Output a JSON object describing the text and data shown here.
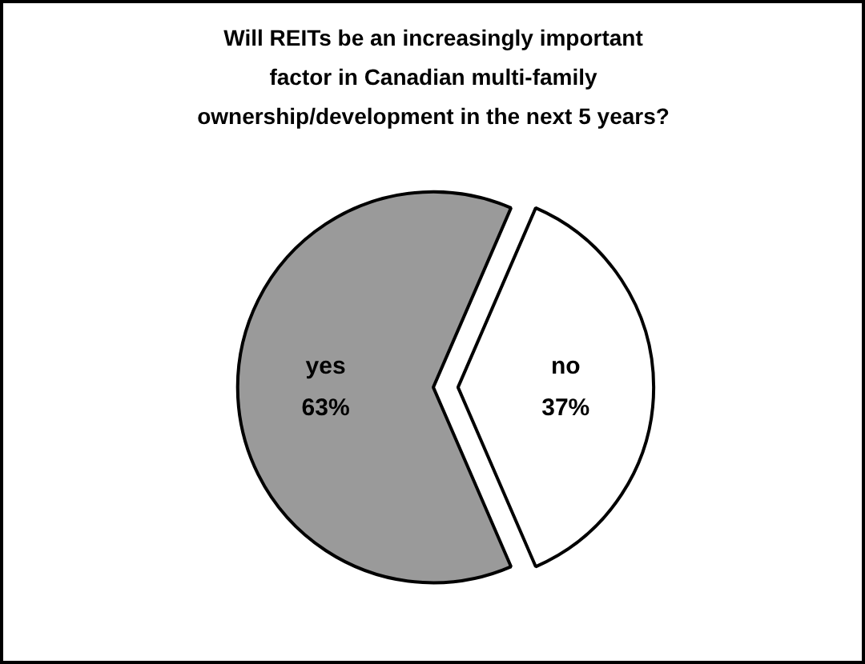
{
  "chart_data": {
    "type": "pie",
    "title": "Will REITs be an increasingly important factor in Canadian multi-family ownership/development in the next 5 years?",
    "categories": [
      "yes",
      "no"
    ],
    "values": [
      63,
      37
    ],
    "colors": [
      "#9a9a9a",
      "#ffffff"
    ],
    "value_labels": [
      "63%",
      "37%"
    ]
  }
}
